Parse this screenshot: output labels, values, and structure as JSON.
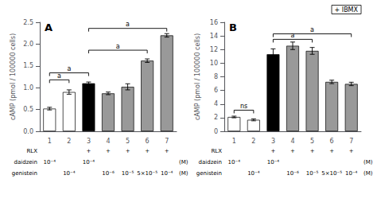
{
  "chart_data": [
    {
      "type": "bar",
      "title": "A",
      "ylabel": "cAMP (pmol / 100000 cells)",
      "categories": [
        "1",
        "2",
        "3",
        "4",
        "5",
        "6",
        "7"
      ],
      "values": [
        0.52,
        0.9,
        1.1,
        0.87,
        1.02,
        1.62,
        2.2
      ],
      "errors": [
        0.03,
        0.05,
        0.03,
        0.03,
        0.07,
        0.04,
        0.04
      ],
      "colors": [
        "white",
        "white",
        "black",
        "#999999",
        "#999999",
        "#999999",
        "#999999"
      ],
      "ylim": [
        0,
        2.5
      ],
      "yticks": [
        {
          "value": 0,
          "label": "0.0"
        },
        0.5,
        {
          "value": 1,
          "label": "1.0"
        },
        1.5,
        {
          "value": 2,
          "label": "2.0"
        },
        2.5
      ],
      "grid": false,
      "brackets": [
        {
          "from": "1",
          "to": "2",
          "y": 1.18,
          "label": "a"
        },
        {
          "from": "1",
          "to": "3",
          "y": 1.34,
          "label": "a"
        },
        {
          "from": "3",
          "to": "6",
          "y": 1.86,
          "label": "a"
        },
        {
          "from": "3",
          "to": "7",
          "y": 2.36,
          "label": "a"
        }
      ],
      "rows": [
        {
          "name": "RLX",
          "labels": [
            null,
            null,
            "+",
            "+",
            "+",
            "+",
            "+"
          ]
        },
        {
          "name": "daidzein",
          "labels": [
            "10⁻⁴",
            null,
            "10⁻⁴",
            null,
            null,
            null,
            null
          ],
          "unit": "(M)"
        },
        {
          "name": "genistein",
          "labels": [
            null,
            "10⁻⁴",
            null,
            "10⁻⁶",
            "10⁻⁵",
            "5×10⁻⁵",
            "10⁻⁴"
          ],
          "unit": "(M)"
        }
      ]
    },
    {
      "type": "bar",
      "title": "B",
      "ylabel": "cAMP (pmol / 100000 cells)",
      "categories": [
        "1",
        "2",
        "3",
        "4",
        "5",
        "6",
        "7"
      ],
      "values": [
        2.1,
        1.68,
        11.3,
        12.55,
        11.8,
        7.25,
        6.95
      ],
      "errors": [
        0.12,
        0.14,
        0.8,
        0.55,
        0.5,
        0.25,
        0.25
      ],
      "colors": [
        "white",
        "white",
        "black",
        "#999999",
        "#999999",
        "#999999",
        "#999999"
      ],
      "ylim": [
        0,
        16
      ],
      "yticks": [
        0,
        2,
        4,
        6,
        8,
        10,
        12,
        14,
        16
      ],
      "grid": false,
      "brackets": [
        {
          "from": "1",
          "to": "2",
          "y": 3.1,
          "label": "ns"
        },
        {
          "from": "3",
          "to": "5",
          "y": 13.5,
          "label": "a"
        },
        {
          "from": "3",
          "to": "7",
          "y": 14.3,
          "label": "a"
        }
      ],
      "annotation": "+ IBMX",
      "rows": [
        {
          "name": "RLX",
          "labels": [
            null,
            null,
            "+",
            "+",
            "+",
            "+",
            "+"
          ]
        },
        {
          "name": "daidzein",
          "labels": [
            "10⁻⁴",
            null,
            "10⁻⁴",
            null,
            null,
            null,
            null
          ],
          "unit": "(M)"
        },
        {
          "name": "genistein",
          "labels": [
            null,
            "10⁻⁴",
            null,
            "10⁻⁶",
            "10⁻⁵",
            "5×10⁻⁵",
            "10⁻⁴"
          ],
          "unit": "(M)"
        }
      ]
    }
  ]
}
